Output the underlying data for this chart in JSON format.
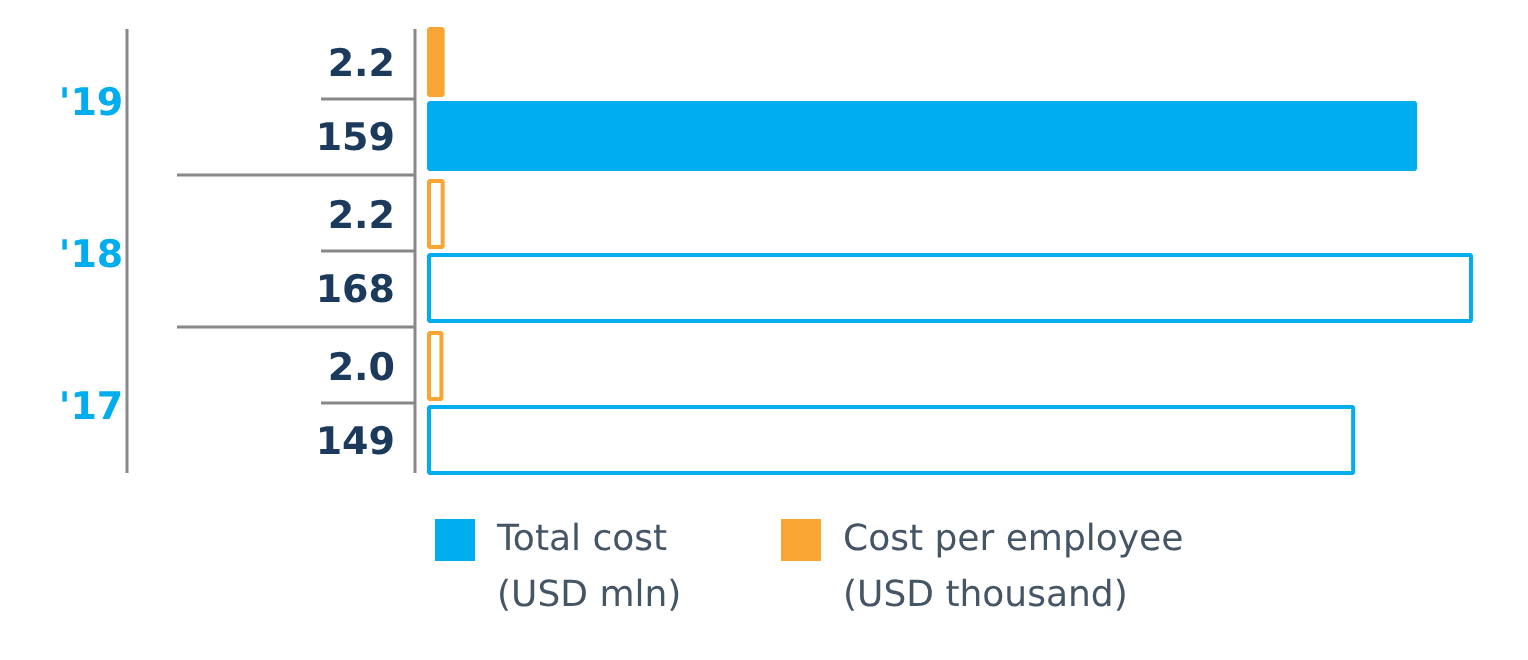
{
  "chart_data": {
    "type": "bar",
    "orientation": "horizontal",
    "categories": [
      "'19",
      "'18",
      "'17"
    ],
    "series": [
      {
        "name": "Cost per employee (USD thousand)",
        "color": "#f9a533",
        "colors": [
          "#f9a533",
          "#ffffff",
          "#ffffff"
        ],
        "values": [
          2.2,
          2.2,
          2.0
        ],
        "value_labels": [
          "2.2",
          "2.2",
          "2.0"
        ]
      },
      {
        "name": "Total cost (USD mln)",
        "color": "#00aeef",
        "colors": [
          "#00aeef",
          "#ffffff",
          "#ffffff"
        ],
        "values": [
          159,
          168,
          149
        ]
      }
    ],
    "data_labels": true,
    "legend": "bottom",
    "grid": false
  }
}
